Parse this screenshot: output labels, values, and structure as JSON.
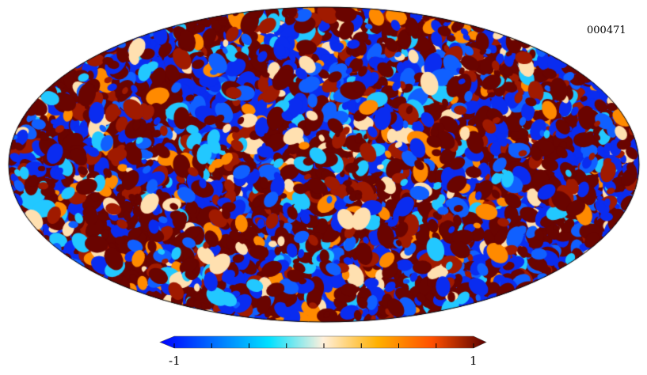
{
  "chart_data": {
    "type": "heatmap",
    "projection": "mollweide",
    "title": "",
    "map_label": "000471",
    "colorbar": {
      "min": -1,
      "max": 1,
      "min_label": "-1",
      "max_label": "1",
      "ticks": [
        -1,
        -0.75,
        -0.5,
        -0.25,
        0,
        0.25,
        0.5,
        0.75,
        1
      ],
      "colors": [
        "#0000ff",
        "#0070ff",
        "#00e0ff",
        "#fff0dc",
        "#ffb000",
        "#ff5000",
        "#5a0000"
      ]
    }
  }
}
